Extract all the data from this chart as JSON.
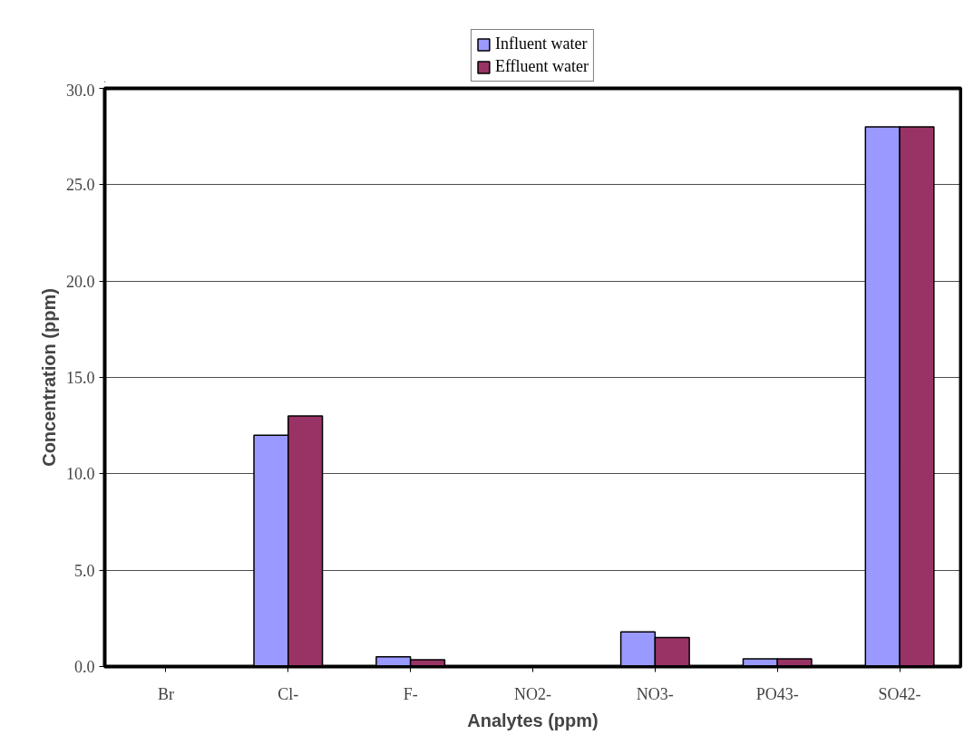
{
  "chart_data": {
    "type": "bar",
    "xlabel": "Analytes (ppm)",
    "ylabel": "Concentration (ppm)",
    "categories": [
      "Br",
      "Cl-",
      "F-",
      "NO2-",
      "NO3-",
      "PO43-",
      "SO42-"
    ],
    "series": [
      {
        "name": "Influent water",
        "color": "#9999ff",
        "values": [
          null,
          12,
          0.5,
          null,
          1.8,
          0.4,
          28
        ]
      },
      {
        "name": "Effluent water",
        "color": "#993366",
        "values": [
          null,
          13,
          0.35,
          null,
          1.5,
          0.4,
          28
        ]
      }
    ],
    "ylim": [
      0,
      30
    ],
    "yticks": [
      {
        "value": 0,
        "label": "0.0"
      },
      {
        "value": 5,
        "label": "5.0"
      },
      {
        "value": 10,
        "label": "10.0"
      },
      {
        "value": 15,
        "label": "15.0"
      },
      {
        "value": 20,
        "label": "20.0"
      },
      {
        "value": 25,
        "label": "25.0"
      },
      {
        "value": 30,
        "label": "30.0"
      }
    ],
    "grid": "y",
    "legend": "top"
  }
}
